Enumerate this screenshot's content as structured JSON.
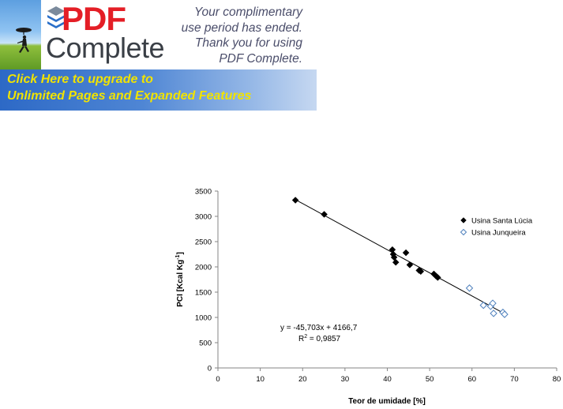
{
  "banner": {
    "brand_pdf": "PDF",
    "brand_complete": "Complete",
    "message": [
      "Your complimentary",
      "use period has ended.",
      "Thank you for using",
      "PDF Complete."
    ],
    "upgrade_line1": "Click Here to upgrade to",
    "upgrade_line2": "Unlimited Pages and Expanded Features",
    "colors": {
      "pdf_red": "#e41e26",
      "upgrade_text": "#f1e300",
      "upgrade_bg": "#2d69c6"
    }
  },
  "chart_data": {
    "type": "scatter",
    "title": "",
    "xlabel": "Teor de umidade [%]",
    "ylabel": "PCI [Kcal Kg",
    "ylabel_sup": "-1",
    "ylabel_end": "]",
    "xlim": [
      0,
      80
    ],
    "ylim": [
      0,
      3500
    ],
    "xticks": [
      0,
      10,
      20,
      30,
      40,
      50,
      60,
      70,
      80
    ],
    "yticks": [
      0,
      500,
      1000,
      1500,
      2000,
      2500,
      3000,
      3500
    ],
    "grid": false,
    "legend_position": "top-right",
    "series": [
      {
        "name": "Usina Santa Lúcia",
        "marker": "filled-diamond",
        "color": "#000000",
        "points": [
          [
            18.3,
            3320
          ],
          [
            25.1,
            3040
          ],
          [
            41.2,
            2340
          ],
          [
            41.4,
            2250
          ],
          [
            41.6,
            2190
          ],
          [
            42.0,
            2090
          ],
          [
            44.4,
            2280
          ],
          [
            45.3,
            2040
          ],
          [
            47.5,
            1930
          ],
          [
            47.9,
            1910
          ],
          [
            51.0,
            1860
          ],
          [
            51.5,
            1820
          ],
          [
            51.9,
            1790
          ]
        ]
      },
      {
        "name": "Usina Junqueira",
        "marker": "open-diamond",
        "color": "#4f81bd",
        "points": [
          [
            59.4,
            1580
          ],
          [
            62.7,
            1240
          ],
          [
            64.4,
            1220
          ],
          [
            64.9,
            1280
          ],
          [
            65.1,
            1080
          ],
          [
            67.3,
            1100
          ],
          [
            67.7,
            1060
          ]
        ]
      }
    ],
    "trendline": {
      "slope": -45.703,
      "intercept": 4166.7,
      "x_range": [
        18.3,
        67.7
      ]
    },
    "equation_text": "y = -45,703x + 4166,7",
    "r2_prefix": "R",
    "r2_sup": "2",
    "r2_value": " = 0,9857"
  }
}
